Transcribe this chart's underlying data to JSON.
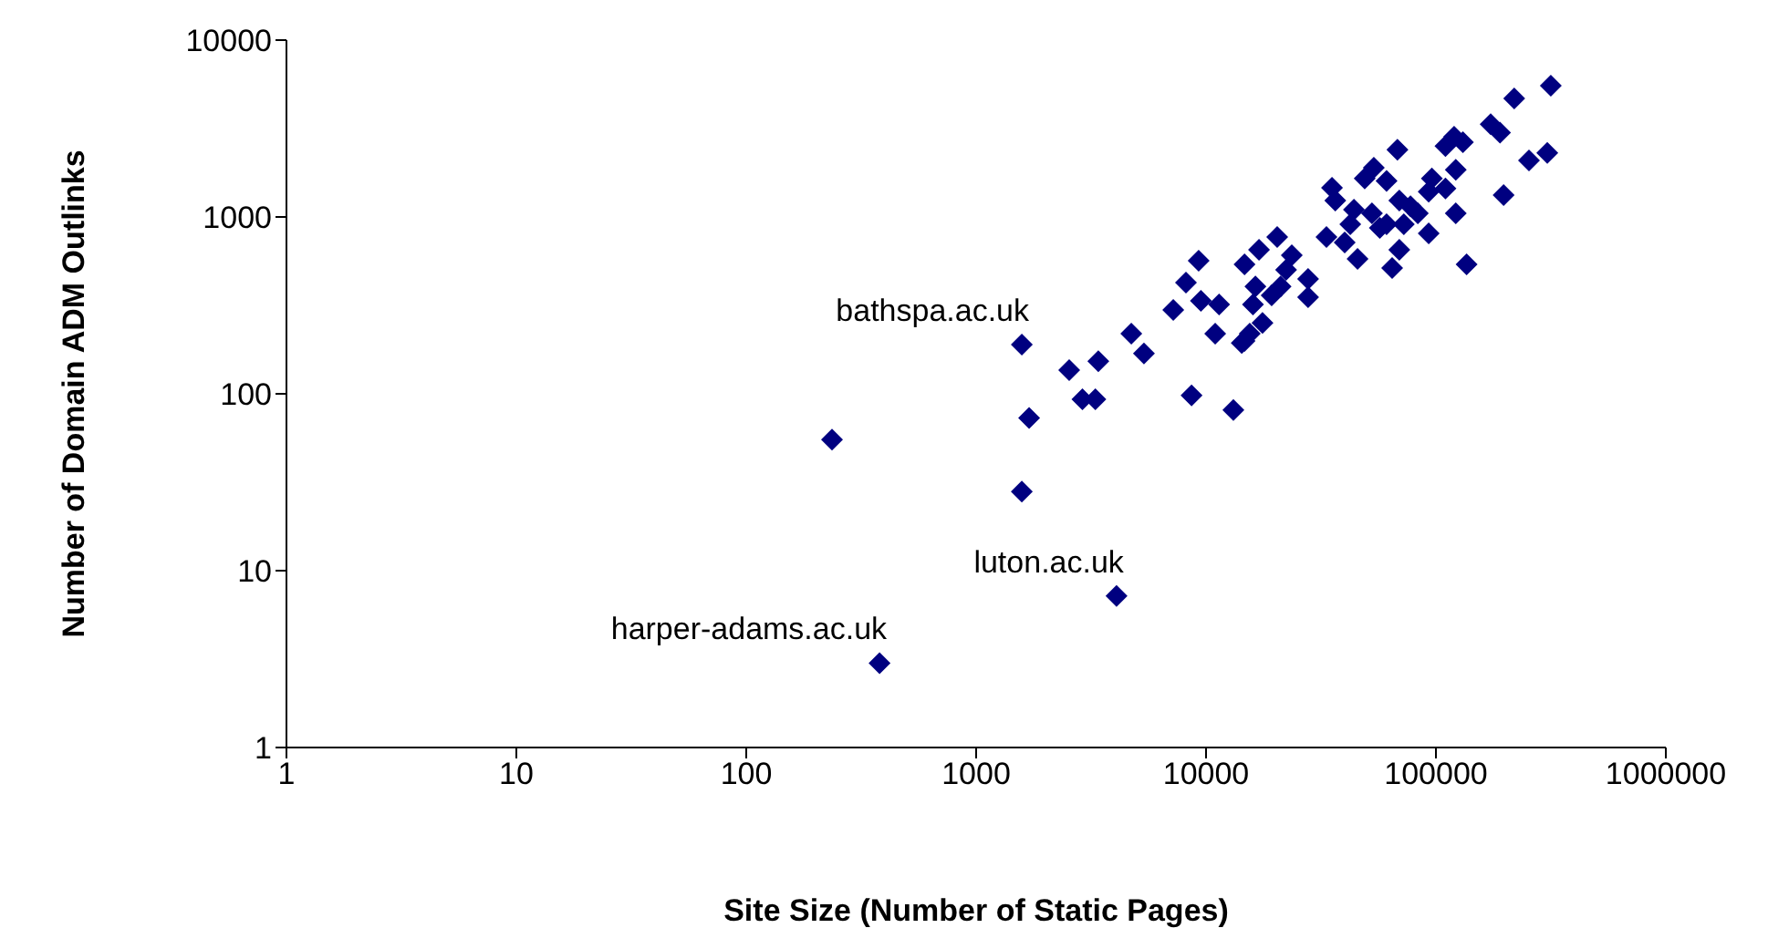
{
  "chart_data": {
    "type": "scatter",
    "xlabel": "Site Size (Number of Static Pages)",
    "ylabel": "Number of Domain ADM Outlinks",
    "log": "xy",
    "grid": false,
    "legend": false,
    "marker": "diamond",
    "xlim": [
      1,
      1000000
    ],
    "xticks": [
      1,
      10,
      100,
      1000,
      10000,
      100000,
      1000000
    ],
    "ylim": [
      1,
      10000
    ],
    "yticks": [
      1,
      10,
      100,
      1000,
      10000
    ],
    "annotations": [
      {
        "text": "bathspa.ac.uk",
        "x": 1580,
        "y": 190
      },
      {
        "text": "luton.ac.uk",
        "x": 4080,
        "y": 7.2
      },
      {
        "text": "harper-adams.ac.uk",
        "x": 380,
        "y": 3
      }
    ],
    "series": [
      {
        "color": "#000080",
        "x": [
          236,
          380,
          1580,
          1700,
          1580,
          4080,
          2540,
          3400,
          2900,
          3300,
          4730,
          5370,
          7200,
          8650,
          13150,
          8180,
          9290,
          9500,
          11400,
          10960,
          14700,
          316000,
          219000,
          173000,
          190000,
          120000,
          110000,
          131000,
          68000,
          254000,
          305000,
          122000,
          197000,
          122000,
          136000,
          53700,
          49000,
          61000,
          96000,
          93000,
          110000,
          35300,
          36500,
          44000,
          52700,
          69300,
          77500,
          83400,
          42400,
          61000,
          72500,
          33400,
          40100,
          45600,
          69300,
          93000,
          64500,
          57000,
          14700,
          17000,
          20400,
          23600,
          27800,
          27800,
          21100,
          16400,
          16000,
          19300,
          17600,
          15500,
          14300,
          22300
        ],
        "values": [
          55,
          3,
          190,
          73,
          28,
          7.2,
          136,
          153,
          93,
          93,
          219,
          169,
          298,
          98,
          81,
          425,
          566,
          336,
          320,
          219,
          199,
          5520,
          4680,
          3350,
          3000,
          2840,
          2520,
          2650,
          2400,
          2090,
          2300,
          1850,
          1330,
          1050,
          540,
          1900,
          1650,
          1600,
          1650,
          1390,
          1450,
          1460,
          1240,
          1100,
          1050,
          1240,
          1150,
          1050,
          910,
          910,
          910,
          770,
          718,
          580,
          652,
          807,
          514,
          867,
          540,
          652,
          770,
          608,
          446,
          352,
          405,
          405,
          320,
          360,
          252,
          219,
          194,
          502
        ]
      }
    ]
  }
}
